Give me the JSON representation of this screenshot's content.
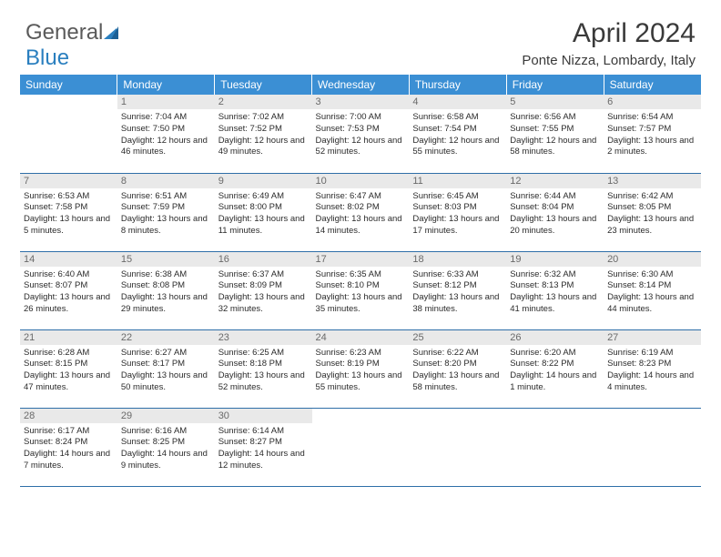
{
  "logo": {
    "part1": "General",
    "part2": "Blue"
  },
  "header": {
    "title": "April 2024",
    "location": "Ponte Nizza, Lombardy, Italy"
  },
  "colors": {
    "header_bg": "#3b8fd4",
    "header_text": "#ffffff",
    "daynum_bg": "#e9e9e9",
    "daynum_text": "#6a6a6a",
    "border": "#2f6fa8",
    "logo_gray": "#5a5a5a",
    "logo_blue": "#2a7fbf"
  },
  "weekdays": [
    "Sunday",
    "Monday",
    "Tuesday",
    "Wednesday",
    "Thursday",
    "Friday",
    "Saturday"
  ],
  "start_offset": 1,
  "days": [
    {
      "n": 1,
      "sr": "7:04 AM",
      "ss": "7:50 PM",
      "dl": "12 hours and 46 minutes."
    },
    {
      "n": 2,
      "sr": "7:02 AM",
      "ss": "7:52 PM",
      "dl": "12 hours and 49 minutes."
    },
    {
      "n": 3,
      "sr": "7:00 AM",
      "ss": "7:53 PM",
      "dl": "12 hours and 52 minutes."
    },
    {
      "n": 4,
      "sr": "6:58 AM",
      "ss": "7:54 PM",
      "dl": "12 hours and 55 minutes."
    },
    {
      "n": 5,
      "sr": "6:56 AM",
      "ss": "7:55 PM",
      "dl": "12 hours and 58 minutes."
    },
    {
      "n": 6,
      "sr": "6:54 AM",
      "ss": "7:57 PM",
      "dl": "13 hours and 2 minutes."
    },
    {
      "n": 7,
      "sr": "6:53 AM",
      "ss": "7:58 PM",
      "dl": "13 hours and 5 minutes."
    },
    {
      "n": 8,
      "sr": "6:51 AM",
      "ss": "7:59 PM",
      "dl": "13 hours and 8 minutes."
    },
    {
      "n": 9,
      "sr": "6:49 AM",
      "ss": "8:00 PM",
      "dl": "13 hours and 11 minutes."
    },
    {
      "n": 10,
      "sr": "6:47 AM",
      "ss": "8:02 PM",
      "dl": "13 hours and 14 minutes."
    },
    {
      "n": 11,
      "sr": "6:45 AM",
      "ss": "8:03 PM",
      "dl": "13 hours and 17 minutes."
    },
    {
      "n": 12,
      "sr": "6:44 AM",
      "ss": "8:04 PM",
      "dl": "13 hours and 20 minutes."
    },
    {
      "n": 13,
      "sr": "6:42 AM",
      "ss": "8:05 PM",
      "dl": "13 hours and 23 minutes."
    },
    {
      "n": 14,
      "sr": "6:40 AM",
      "ss": "8:07 PM",
      "dl": "13 hours and 26 minutes."
    },
    {
      "n": 15,
      "sr": "6:38 AM",
      "ss": "8:08 PM",
      "dl": "13 hours and 29 minutes."
    },
    {
      "n": 16,
      "sr": "6:37 AM",
      "ss": "8:09 PM",
      "dl": "13 hours and 32 minutes."
    },
    {
      "n": 17,
      "sr": "6:35 AM",
      "ss": "8:10 PM",
      "dl": "13 hours and 35 minutes."
    },
    {
      "n": 18,
      "sr": "6:33 AM",
      "ss": "8:12 PM",
      "dl": "13 hours and 38 minutes."
    },
    {
      "n": 19,
      "sr": "6:32 AM",
      "ss": "8:13 PM",
      "dl": "13 hours and 41 minutes."
    },
    {
      "n": 20,
      "sr": "6:30 AM",
      "ss": "8:14 PM",
      "dl": "13 hours and 44 minutes."
    },
    {
      "n": 21,
      "sr": "6:28 AM",
      "ss": "8:15 PM",
      "dl": "13 hours and 47 minutes."
    },
    {
      "n": 22,
      "sr": "6:27 AM",
      "ss": "8:17 PM",
      "dl": "13 hours and 50 minutes."
    },
    {
      "n": 23,
      "sr": "6:25 AM",
      "ss": "8:18 PM",
      "dl": "13 hours and 52 minutes."
    },
    {
      "n": 24,
      "sr": "6:23 AM",
      "ss": "8:19 PM",
      "dl": "13 hours and 55 minutes."
    },
    {
      "n": 25,
      "sr": "6:22 AM",
      "ss": "8:20 PM",
      "dl": "13 hours and 58 minutes."
    },
    {
      "n": 26,
      "sr": "6:20 AM",
      "ss": "8:22 PM",
      "dl": "14 hours and 1 minute."
    },
    {
      "n": 27,
      "sr": "6:19 AM",
      "ss": "8:23 PM",
      "dl": "14 hours and 4 minutes."
    },
    {
      "n": 28,
      "sr": "6:17 AM",
      "ss": "8:24 PM",
      "dl": "14 hours and 7 minutes."
    },
    {
      "n": 29,
      "sr": "6:16 AM",
      "ss": "8:25 PM",
      "dl": "14 hours and 9 minutes."
    },
    {
      "n": 30,
      "sr": "6:14 AM",
      "ss": "8:27 PM",
      "dl": "14 hours and 12 minutes."
    }
  ],
  "labels": {
    "sunrise": "Sunrise:",
    "sunset": "Sunset:",
    "daylight": "Daylight:"
  }
}
